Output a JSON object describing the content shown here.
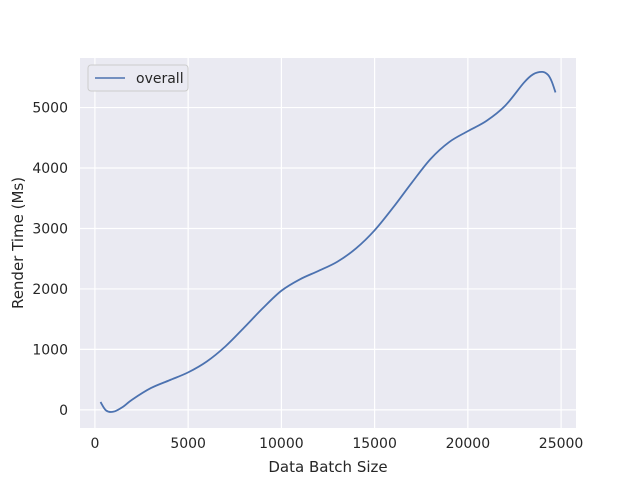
{
  "chart_data": {
    "type": "line",
    "title": "",
    "xlabel": "Data Batch Size",
    "ylabel": "Render Time (Ms)",
    "xlim": [
      -800,
      25800
    ],
    "ylim": [
      -300,
      5820
    ],
    "xticks": [
      0,
      5000,
      10000,
      15000,
      20000,
      25000
    ],
    "yticks": [
      0,
      1000,
      2000,
      3000,
      4000,
      5000
    ],
    "grid": true,
    "legend_position": "top-left",
    "series": [
      {
        "name": "overall",
        "color": "#4c72b0",
        "x": [
          300,
          600,
          1000,
          1500,
          2000,
          3000,
          4000,
          5000,
          6000,
          7000,
          8000,
          9000,
          10000,
          11000,
          12000,
          13000,
          14000,
          15000,
          16000,
          17000,
          18000,
          19000,
          20000,
          21000,
          22000,
          23000,
          23500,
          24000,
          24300,
          24500,
          24700
        ],
        "y": [
          130,
          -10,
          -30,
          50,
          170,
          360,
          490,
          620,
          800,
          1050,
          1360,
          1680,
          1970,
          2160,
          2300,
          2450,
          2670,
          2970,
          3350,
          3760,
          4150,
          4430,
          4610,
          4780,
          5030,
          5410,
          5550,
          5590,
          5540,
          5430,
          5250
        ]
      }
    ]
  }
}
